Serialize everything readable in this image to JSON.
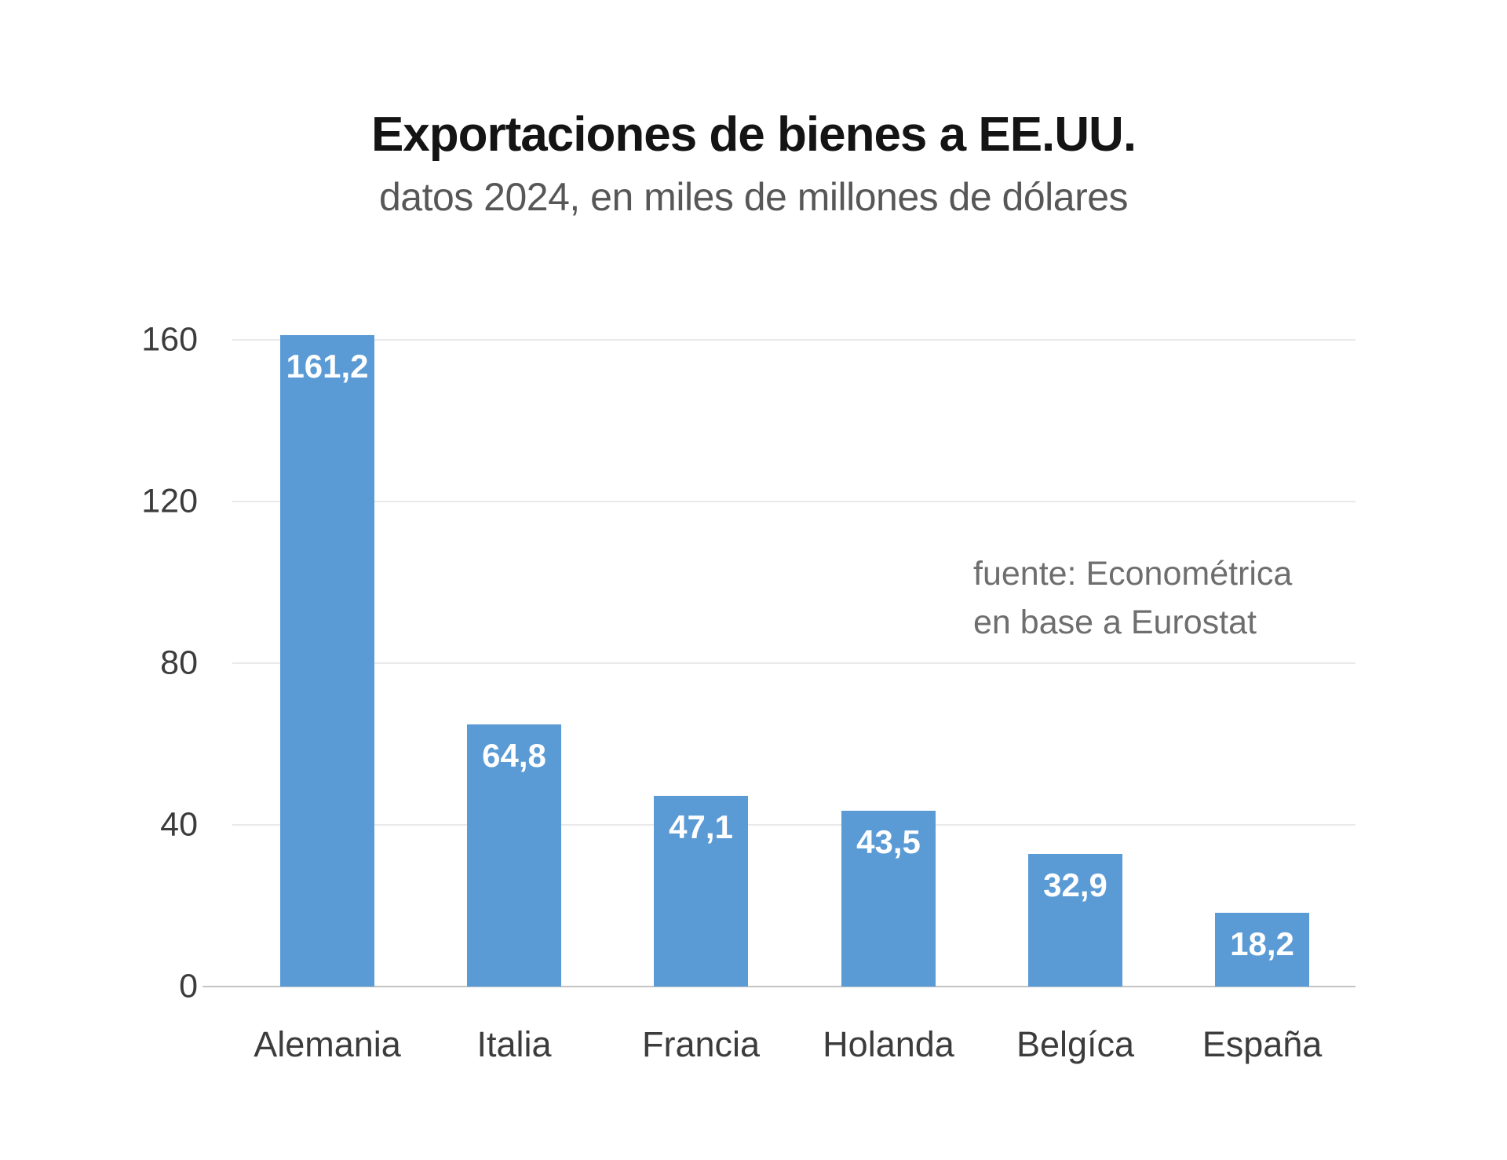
{
  "chart_data": {
    "type": "bar",
    "title": "Exportaciones de bienes a EE.UU.",
    "subtitle": "datos 2024, en miles de millones de dólares",
    "source_lines": [
      "fuente: Econométrica",
      "en base a Eurostat"
    ],
    "categories": [
      "Alemania",
      "Italia",
      "Francia",
      "Holanda",
      "Belgíca",
      "España"
    ],
    "values": [
      161.2,
      64.8,
      47.1,
      43.5,
      32.9,
      18.2
    ],
    "value_labels": [
      "161,2",
      "64,8",
      "47,1",
      "43,5",
      "32,9",
      "18,2"
    ],
    "ylabel": "",
    "xlabel": "",
    "ylim": [
      0,
      160
    ],
    "ytick_labels": [
      "160",
      "120",
      "80",
      "40",
      "0"
    ],
    "grid": true,
    "legend_position": "none",
    "bar_color": "#5B9BD5",
    "value_label_color": "#ffffff"
  }
}
